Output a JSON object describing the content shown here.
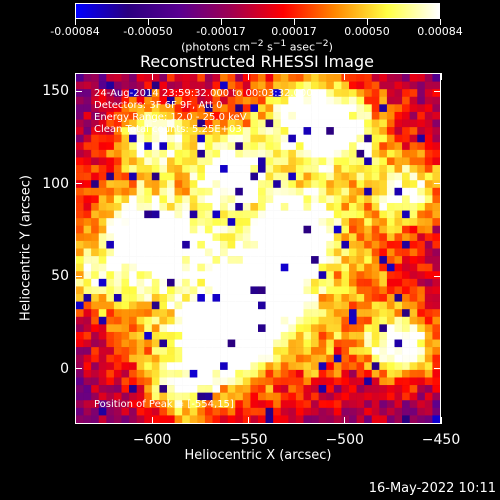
{
  "colorbar": {
    "tick_labels": [
      "-0.00084",
      "-0.00050",
      "-0.00017",
      "0.00017",
      "0.00050",
      "0.00084"
    ],
    "tick_fracs": [
      0.0,
      0.2,
      0.4,
      0.6,
      0.8,
      1.0
    ],
    "units_html": "(photons cm<sup>−2</sup> s<sup>−1</sup> asec<sup>−2</sup>)"
  },
  "title": "Reconstructed RHESSI Image",
  "annotations": {
    "time_range": "24-Aug-2014 23:59:32.000 to 00:03:32.000",
    "detectors": "Detectors: 3F 6F 9F, Att 0",
    "energy": "Energy Range: 12.0 - 25.0 keV",
    "clean": "Clean    Total counts: 5.25E+03",
    "peak": "Position of Peak = [-554,15]"
  },
  "axes": {
    "xlabel": "Heliocentric X (arcsec)",
    "ylabel": "Heliocentric Y (arcsec)",
    "xticks": [
      "-600",
      "-550",
      "-500",
      "-450"
    ],
    "yticks": [
      "150",
      "100",
      "50",
      "0"
    ],
    "xlim": [
      -640,
      -450
    ],
    "ylim": [
      -30,
      160
    ]
  },
  "footer_date": "16-May-2022 10:11",
  "chart_data": {
    "type": "heatmap",
    "title": "Reconstructed RHESSI Image",
    "xlabel": "Heliocentric X (arcsec)",
    "ylabel": "Heliocentric Y (arcsec)",
    "xlim": [
      -640,
      -450
    ],
    "ylim": [
      -30,
      160
    ],
    "colorbar_range": [
      -0.00084,
      0.00084
    ],
    "peak_position": [
      -554,
      15
    ],
    "hotspots": [
      {
        "x": -604,
        "y": 72,
        "strength": 0.85
      },
      {
        "x": -560,
        "y": 17,
        "strength": 1.0
      },
      {
        "x": -525,
        "y": 70,
        "strength": 0.75
      },
      {
        "x": -470,
        "y": 12,
        "strength": 0.8
      },
      {
        "x": -600,
        "y": 128,
        "strength": 0.55
      },
      {
        "x": -520,
        "y": 140,
        "strength": 0.6
      },
      {
        "x": -465,
        "y": 95,
        "strength": 0.55
      },
      {
        "x": -500,
        "y": 130,
        "strength": 0.5
      },
      {
        "x": -630,
        "y": 50,
        "strength": 0.45
      },
      {
        "x": -560,
        "y": 110,
        "strength": 0.45
      },
      {
        "x": -585,
        "y": -10,
        "strength": 0.5
      },
      {
        "x": -540,
        "y": 40,
        "strength": 0.55
      }
    ],
    "colormap": [
      "#0000ff",
      "#2a0080",
      "#5a0090",
      "#a00050",
      "#ff0000",
      "#ff8800",
      "#ffff44",
      "#ffffff"
    ]
  }
}
